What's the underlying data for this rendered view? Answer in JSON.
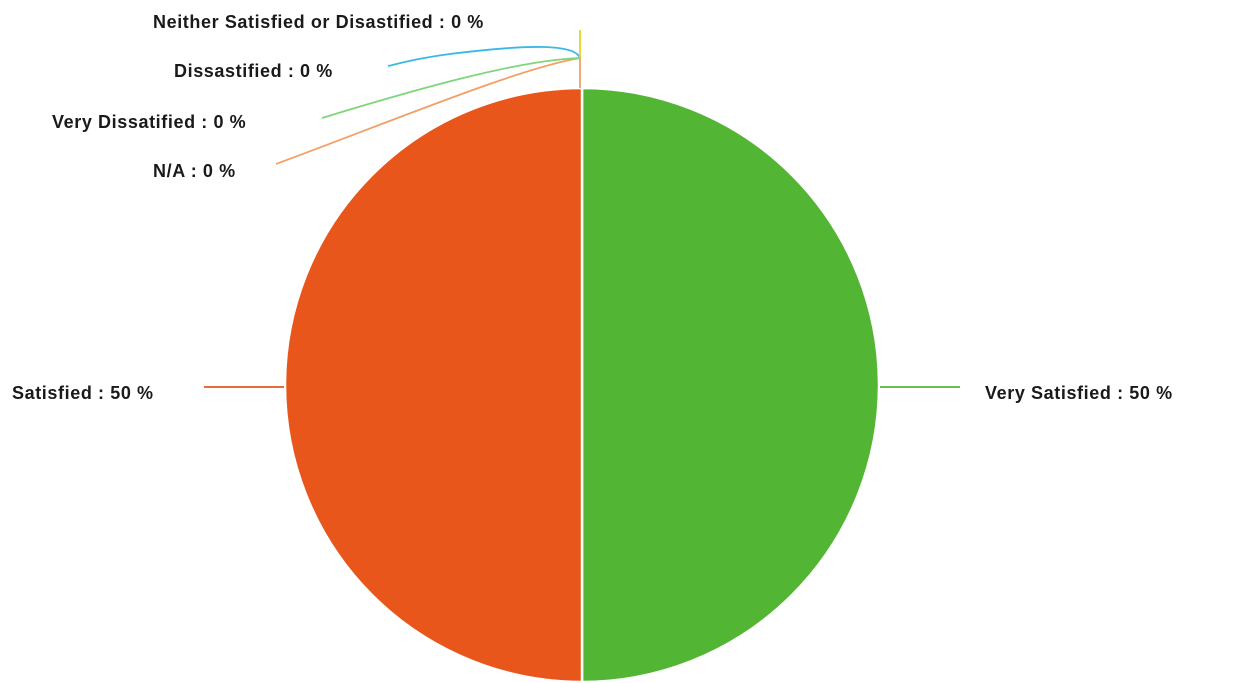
{
  "chart_data": {
    "type": "pie",
    "unit": "%",
    "slices": [
      {
        "label": "Very Satisfied",
        "value": 50,
        "color": "#53b534"
      },
      {
        "label": "Satisfied",
        "value": 50,
        "color": "#e8561b"
      },
      {
        "label": "N/A",
        "value": 0,
        "color": "#f2a067"
      },
      {
        "label": "Very Dissatisfied",
        "value": 0,
        "color": "#7ed67a"
      },
      {
        "label": "Dissatisfied",
        "value": 0,
        "color": "#3ab8e6"
      },
      {
        "label": "Neither Satisfied or Disastified",
        "value": 0,
        "color": "#e3d51d"
      }
    ],
    "data_labels": [
      "Very Satisfied : 50 %",
      "Satisfied : 50 %",
      "N/A : 0 %",
      "Very Dissatified : 0 %",
      "Dissastified : 0 %",
      "Neither Satisfied or Disastified : 0 %"
    ],
    "legend": "none"
  }
}
